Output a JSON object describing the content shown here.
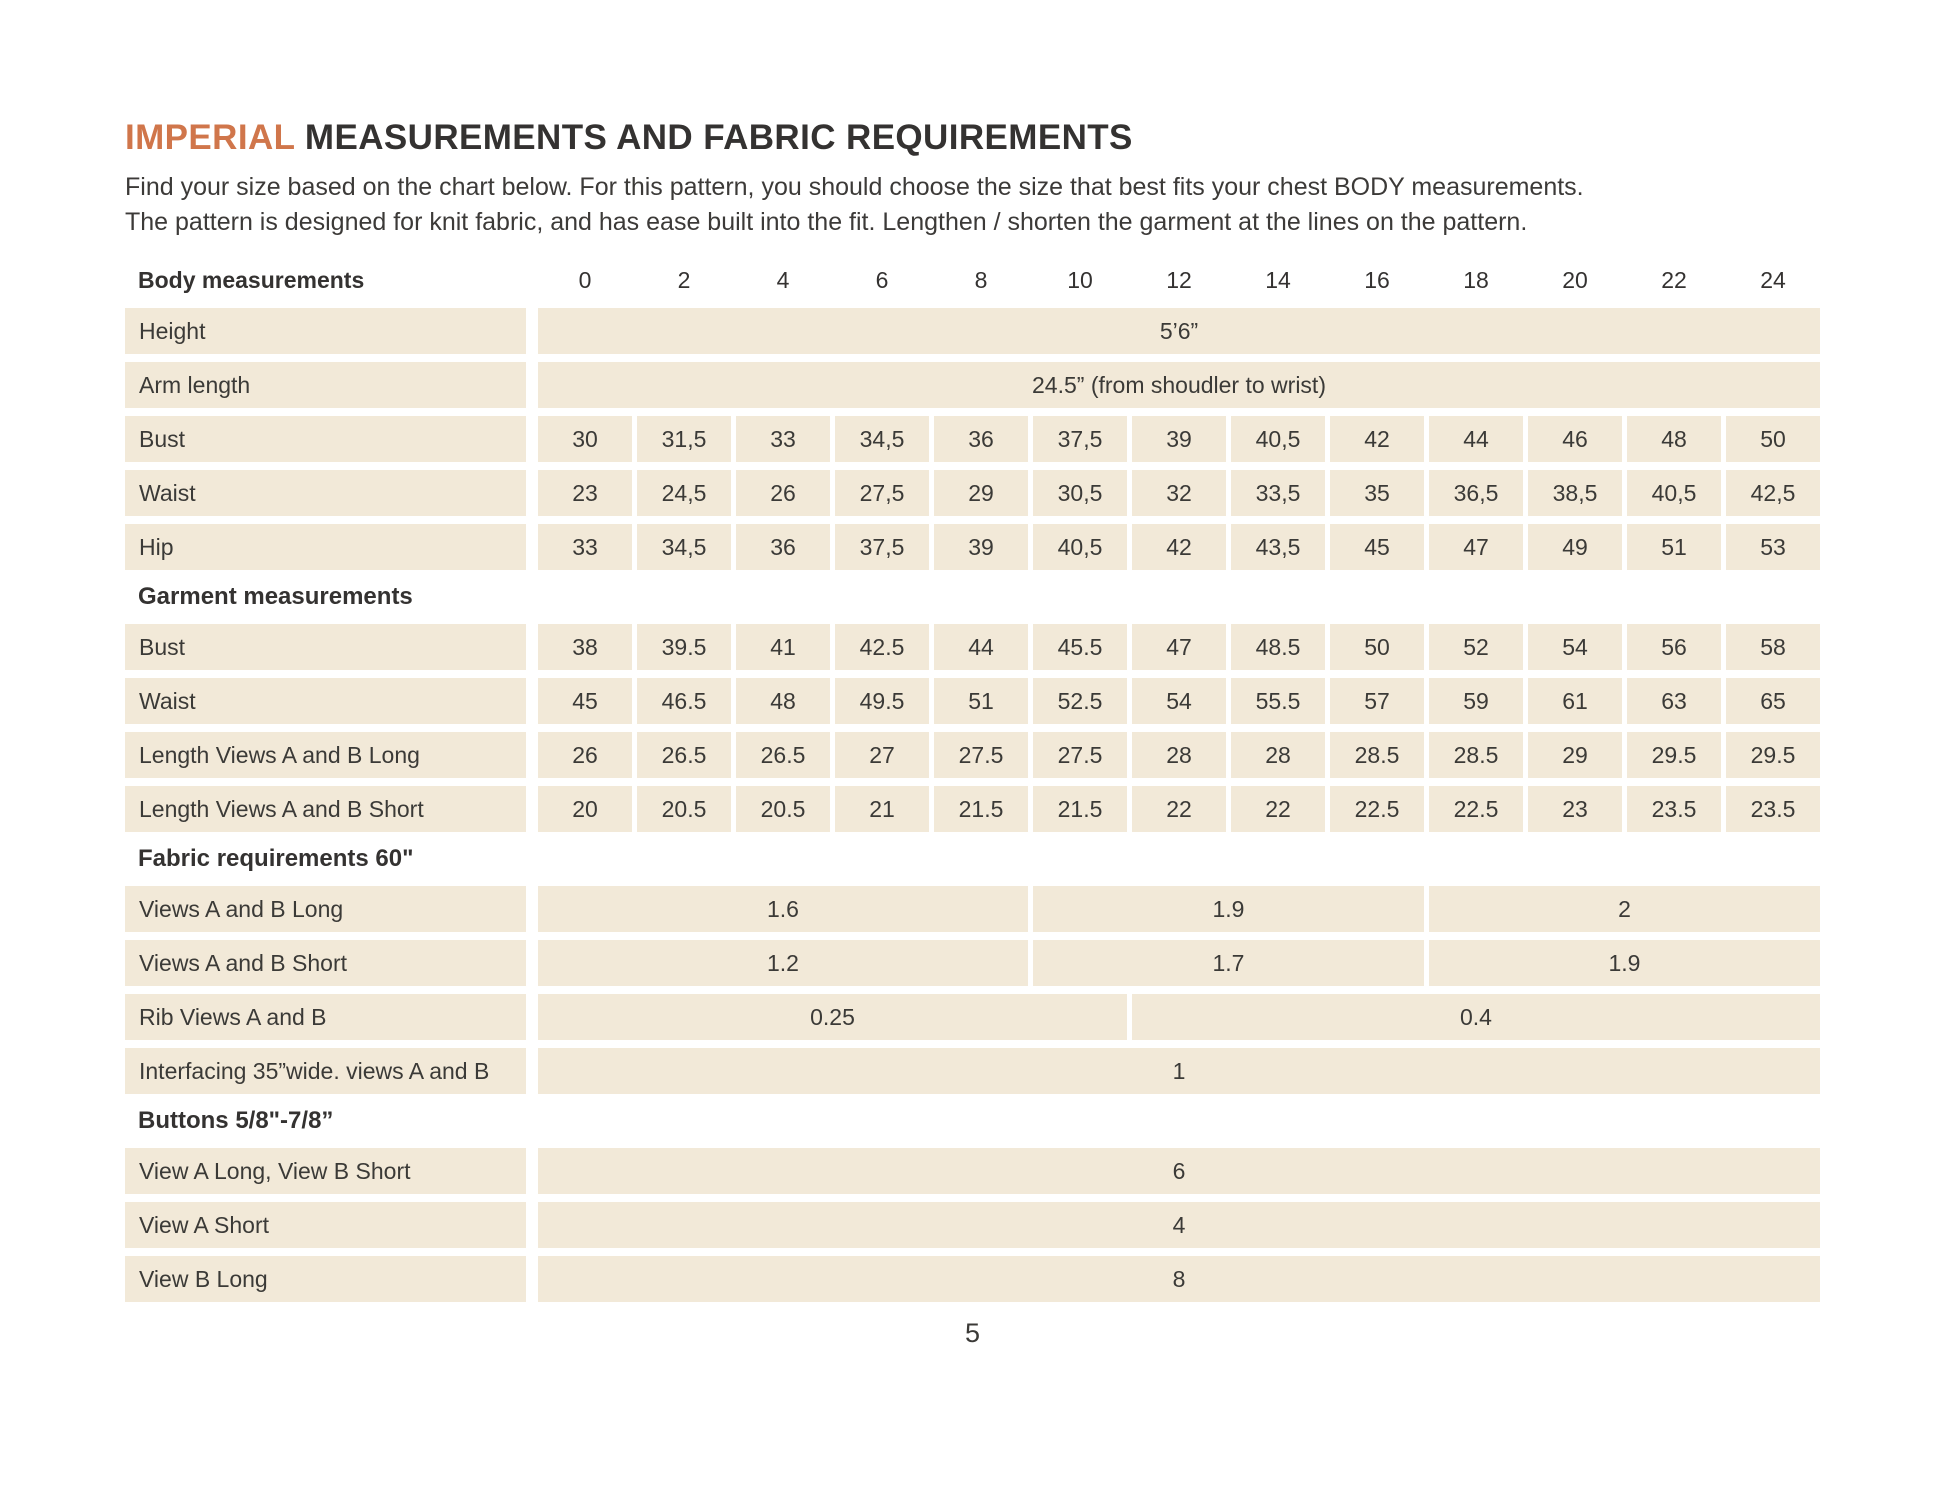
{
  "title": {
    "highlight": "IMPERIAL",
    "rest": "MEASUREMENTS AND FABRIC REQUIREMENTS"
  },
  "intro": {
    "line1": "Find your size based on the chart below. For this pattern, you should choose the size that best fits your chest BODY measurements.",
    "line2": "The pattern is designed for knit fabric, and has ease built into the fit. Lengthen / shorten the garment at the lines on the pattern."
  },
  "colors": {
    "accent": "#d0764b",
    "cell_bg": "#f2e9d8",
    "text": "#3b3a37"
  },
  "table": {
    "header": {
      "label": "Body measurements",
      "sizes": [
        "0",
        "2",
        "4",
        "6",
        "8",
        "10",
        "12",
        "14",
        "16",
        "18",
        "20",
        "22",
        "24"
      ]
    },
    "rows": [
      {
        "type": "data",
        "label": "Height",
        "cells": [
          {
            "value": "5’6”",
            "span": 13
          }
        ]
      },
      {
        "type": "data",
        "label": "Arm length",
        "cells": [
          {
            "value": "24.5” (from shoudler to wrist)",
            "span": 13
          }
        ]
      },
      {
        "type": "data",
        "label": "Bust",
        "cells": [
          {
            "value": "30"
          },
          {
            "value": "31,5"
          },
          {
            "value": "33"
          },
          {
            "value": "34,5"
          },
          {
            "value": "36"
          },
          {
            "value": "37,5"
          },
          {
            "value": "39"
          },
          {
            "value": "40,5"
          },
          {
            "value": "42"
          },
          {
            "value": "44"
          },
          {
            "value": "46"
          },
          {
            "value": "48"
          },
          {
            "value": "50"
          }
        ]
      },
      {
        "type": "data",
        "label": "Waist",
        "cells": [
          {
            "value": "23"
          },
          {
            "value": "24,5"
          },
          {
            "value": "26"
          },
          {
            "value": "27,5"
          },
          {
            "value": "29"
          },
          {
            "value": "30,5"
          },
          {
            "value": "32"
          },
          {
            "value": "33,5"
          },
          {
            "value": "35"
          },
          {
            "value": "36,5"
          },
          {
            "value": "38,5"
          },
          {
            "value": "40,5"
          },
          {
            "value": "42,5"
          }
        ]
      },
      {
        "type": "data",
        "label": "Hip",
        "cells": [
          {
            "value": "33"
          },
          {
            "value": "34,5"
          },
          {
            "value": "36"
          },
          {
            "value": "37,5"
          },
          {
            "value": "39"
          },
          {
            "value": "40,5"
          },
          {
            "value": "42"
          },
          {
            "value": "43,5"
          },
          {
            "value": "45"
          },
          {
            "value": "47"
          },
          {
            "value": "49"
          },
          {
            "value": "51"
          },
          {
            "value": "53"
          }
        ]
      },
      {
        "type": "section",
        "label": "Garment measurements"
      },
      {
        "type": "data",
        "label": "Bust",
        "cells": [
          {
            "value": "38"
          },
          {
            "value": "39.5"
          },
          {
            "value": "41"
          },
          {
            "value": "42.5"
          },
          {
            "value": "44"
          },
          {
            "value": "45.5"
          },
          {
            "value": "47"
          },
          {
            "value": "48.5"
          },
          {
            "value": "50"
          },
          {
            "value": "52"
          },
          {
            "value": "54"
          },
          {
            "value": "56"
          },
          {
            "value": "58"
          }
        ]
      },
      {
        "type": "data",
        "label": "Waist",
        "cells": [
          {
            "value": "45"
          },
          {
            "value": "46.5"
          },
          {
            "value": "48"
          },
          {
            "value": "49.5"
          },
          {
            "value": "51"
          },
          {
            "value": "52.5"
          },
          {
            "value": "54"
          },
          {
            "value": "55.5"
          },
          {
            "value": "57"
          },
          {
            "value": "59"
          },
          {
            "value": "61"
          },
          {
            "value": "63"
          },
          {
            "value": "65"
          }
        ]
      },
      {
        "type": "data",
        "label": "Length Views A and B Long",
        "cells": [
          {
            "value": "26"
          },
          {
            "value": "26.5"
          },
          {
            "value": "26.5"
          },
          {
            "value": "27"
          },
          {
            "value": "27.5"
          },
          {
            "value": "27.5"
          },
          {
            "value": "28"
          },
          {
            "value": "28"
          },
          {
            "value": "28.5"
          },
          {
            "value": "28.5"
          },
          {
            "value": "29"
          },
          {
            "value": "29.5"
          },
          {
            "value": "29.5"
          }
        ]
      },
      {
        "type": "data",
        "label": "Length Views A and B Short",
        "cells": [
          {
            "value": "20"
          },
          {
            "value": "20.5"
          },
          {
            "value": "20.5"
          },
          {
            "value": "21"
          },
          {
            "value": "21.5"
          },
          {
            "value": "21.5"
          },
          {
            "value": "22"
          },
          {
            "value": "22"
          },
          {
            "value": "22.5"
          },
          {
            "value": "22.5"
          },
          {
            "value": "23"
          },
          {
            "value": "23.5"
          },
          {
            "value": "23.5"
          }
        ]
      },
      {
        "type": "section",
        "label": "Fabric requirements 60\""
      },
      {
        "type": "data",
        "label": "Views A and B Long",
        "cells": [
          {
            "value": "1.6",
            "span": 5
          },
          {
            "value": "1.9",
            "span": 4
          },
          {
            "value": "2",
            "span": 4
          }
        ]
      },
      {
        "type": "data",
        "label": "Views A and B Short",
        "cells": [
          {
            "value": "1.2",
            "span": 5
          },
          {
            "value": "1.7",
            "span": 4
          },
          {
            "value": "1.9",
            "span": 4
          }
        ]
      },
      {
        "type": "data",
        "label": "Rib Views A and B",
        "cells": [
          {
            "value": "0.25",
            "span": 6
          },
          {
            "value": "0.4",
            "span": 7
          }
        ]
      },
      {
        "type": "data",
        "label": "Interfacing 35”wide. views A and B",
        "cells": [
          {
            "value": "1",
            "span": 13
          }
        ]
      },
      {
        "type": "section",
        "label": "Buttons 5/8\"-7/8”"
      },
      {
        "type": "data",
        "label": "View A Long, View B Short",
        "cells": [
          {
            "value": "6",
            "span": 13
          }
        ]
      },
      {
        "type": "data",
        "label": "View A Short",
        "cells": [
          {
            "value": "4",
            "span": 13
          }
        ]
      },
      {
        "type": "data",
        "label": "View B Long",
        "cells": [
          {
            "value": "8",
            "span": 13
          }
        ]
      }
    ]
  },
  "page_number": "5"
}
